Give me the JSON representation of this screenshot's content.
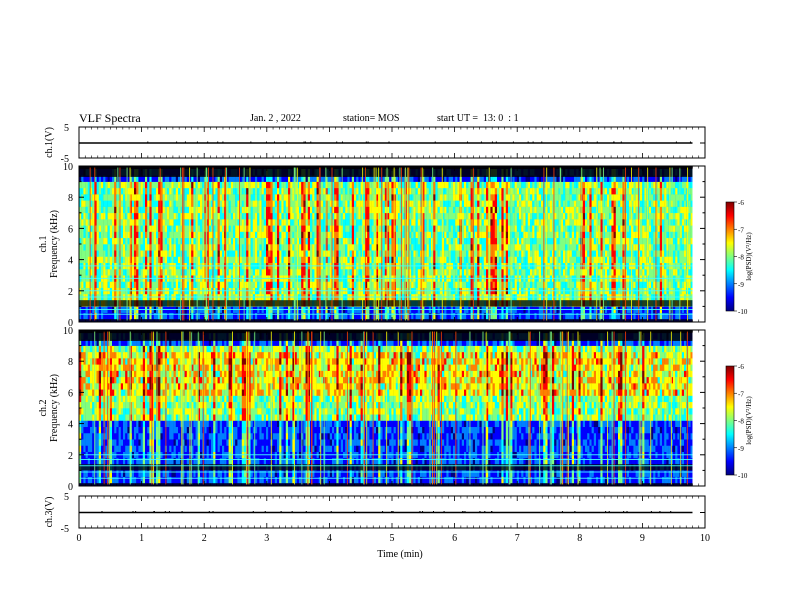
{
  "header": {
    "title": "VLF Spectra",
    "date": "Jan. 2 , 2022",
    "station": "station= MOS",
    "start_ut": "start UT =  13: 0  : 1"
  },
  "colors": {
    "colormap": [
      "#00007f",
      "#0000ff",
      "#0080ff",
      "#00ffff",
      "#80ff80",
      "#ffff00",
      "#ff8000",
      "#ff0000",
      "#7f0000"
    ],
    "background_band": "#000000",
    "trace": "#000000"
  },
  "chart_data": [
    {
      "type": "line",
      "name": "ch1-waveform",
      "ylabel": "ch.1(V)",
      "ylim": [
        -5,
        5
      ],
      "yticks": [
        "5",
        "-5"
      ],
      "x": [
        0,
        10
      ],
      "y": [
        0,
        0
      ],
      "xlim": [
        0,
        10
      ],
      "grid": false
    },
    {
      "type": "heatmap",
      "name": "ch1-spectrogram",
      "ylabel": "ch.1\nFrequency (kHz)",
      "ylim": [
        0,
        10
      ],
      "yticks": [
        "0",
        "2",
        "4",
        "6",
        "8",
        "10"
      ],
      "xlim": [
        0,
        10
      ],
      "data_end_min": 9.8,
      "colorbar": {
        "label": "log(PSD)(V²/Hz)",
        "ticks": [
          "-6",
          "-7",
          "-8",
          "-9",
          "-10"
        ],
        "range": [
          -10,
          -6
        ]
      },
      "dominant_band_khz": [
        1,
        9
      ],
      "horizontal_lines_khz": [
        0.5,
        0.8,
        1.6,
        2.0,
        2.8,
        3.6
      ]
    },
    {
      "type": "heatmap",
      "name": "ch2-spectrogram",
      "ylabel": "ch.2\nFrequency (kHz)",
      "ylim": [
        0,
        10
      ],
      "yticks": [
        "0",
        "2",
        "4",
        "6",
        "8",
        "10"
      ],
      "xlim": [
        0,
        10
      ],
      "data_end_min": 9.8,
      "colorbar": {
        "label": "log(PSD)(V²/Hz)",
        "ticks": [
          "-6",
          "-7",
          "-8",
          "-9",
          "-10"
        ],
        "range": [
          -10,
          -6
        ]
      },
      "dominant_band_khz": [
        4,
        9
      ],
      "horizontal_lines_khz": [
        0.5,
        0.9,
        1.3,
        1.7,
        2.0
      ]
    },
    {
      "type": "line",
      "name": "ch3-waveform",
      "ylabel": "ch.3(V)",
      "ylim": [
        -5,
        5
      ],
      "yticks": [
        "5",
        "-5"
      ],
      "x": [
        0,
        10
      ],
      "y": [
        0,
        0
      ],
      "xlim": [
        0,
        10
      ],
      "grid": false
    }
  ],
  "xaxis": {
    "label": "Time (min)",
    "ticks": [
      "0",
      "1",
      "2",
      "3",
      "4",
      "5",
      "6",
      "7",
      "8",
      "9",
      "10"
    ]
  }
}
